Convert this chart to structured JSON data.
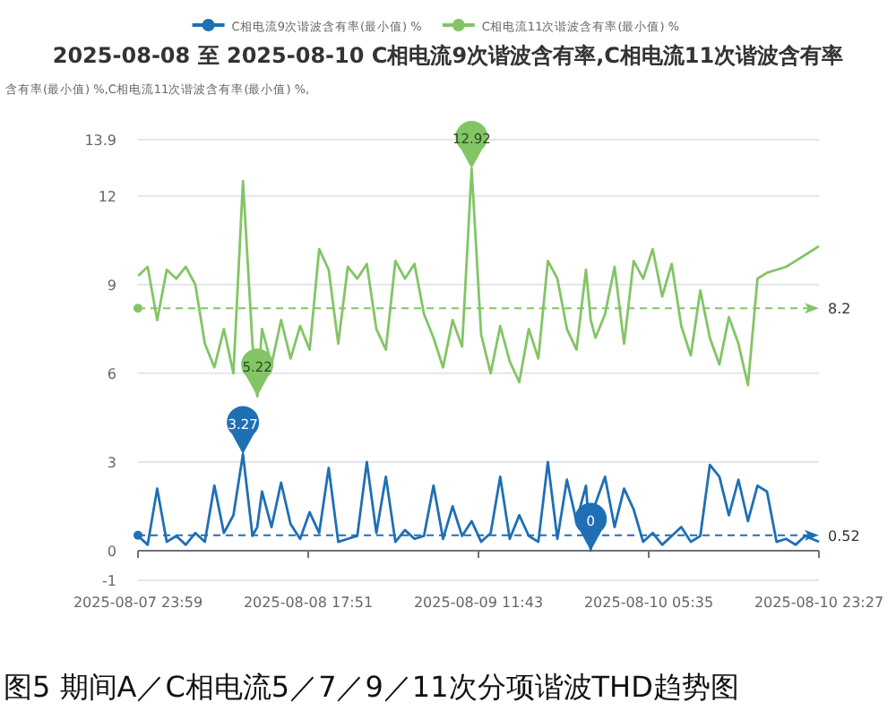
{
  "chart_data": {
    "type": "line",
    "title": "2025-08-08  至 2025-08-10 C相电流9次谐波含有率,C相电流11次谐波含有率",
    "ylabel": "含有率(最小值) %,C相电流11次谐波含有率(最小值) %,",
    "legend": "top",
    "grid": "y",
    "marker": "none",
    "xlim": [
      "2025-08-07T23:59",
      "2025-08-10T23:27"
    ],
    "xticks": [
      {
        "value": "2025-08-07T23:59",
        "label": "2025-08-07 23:59"
      },
      {
        "value": "2025-08-08T17:51",
        "label": "2025-08-08 17:51"
      },
      {
        "value": "2025-08-09T11:43",
        "label": "2025-08-09 11:43"
      },
      {
        "value": "2025-08-10T05:35",
        "label": "2025-08-10 05:35"
      },
      {
        "value": "2025-08-10T23:27",
        "label": "2025-08-10 23:27"
      }
    ],
    "ylim": [
      -1,
      13.9
    ],
    "yticks": [
      -1,
      0,
      3,
      6,
      9,
      12,
      13.9
    ],
    "x": [
      "2025-08-08T00:00",
      "2025-08-08T01:00",
      "2025-08-08T02:00",
      "2025-08-08T03:00",
      "2025-08-08T04:00",
      "2025-08-08T05:00",
      "2025-08-08T06:00",
      "2025-08-08T07:00",
      "2025-08-08T08:00",
      "2025-08-08T09:00",
      "2025-08-08T10:00",
      "2025-08-08T11:00",
      "2025-08-08T12:00",
      "2025-08-08T12:30",
      "2025-08-08T13:00",
      "2025-08-08T14:00",
      "2025-08-08T15:00",
      "2025-08-08T16:00",
      "2025-08-08T17:00",
      "2025-08-08T18:00",
      "2025-08-08T19:00",
      "2025-08-08T20:00",
      "2025-08-08T21:00",
      "2025-08-08T22:00",
      "2025-08-08T23:00",
      "2025-08-09T00:00",
      "2025-08-09T01:00",
      "2025-08-09T02:00",
      "2025-08-09T03:00",
      "2025-08-09T04:00",
      "2025-08-09T05:00",
      "2025-08-09T06:00",
      "2025-08-09T07:00",
      "2025-08-09T08:00",
      "2025-08-09T09:00",
      "2025-08-09T10:00",
      "2025-08-09T11:00",
      "2025-08-09T12:00",
      "2025-08-09T13:00",
      "2025-08-09T14:00",
      "2025-08-09T15:00",
      "2025-08-09T16:00",
      "2025-08-09T17:00",
      "2025-08-09T18:00",
      "2025-08-09T19:00",
      "2025-08-09T20:00",
      "2025-08-09T21:00",
      "2025-08-09T22:00",
      "2025-08-09T23:00",
      "2025-08-09T23:30",
      "2025-08-10T00:00",
      "2025-08-10T01:00",
      "2025-08-10T02:00",
      "2025-08-10T03:00",
      "2025-08-10T04:00",
      "2025-08-10T05:00",
      "2025-08-10T06:00",
      "2025-08-10T07:00",
      "2025-08-10T08:00",
      "2025-08-10T09:00",
      "2025-08-10T10:00",
      "2025-08-10T11:00",
      "2025-08-10T12:00",
      "2025-08-10T13:00",
      "2025-08-10T14:00",
      "2025-08-10T15:00",
      "2025-08-10T16:00",
      "2025-08-10T17:00",
      "2025-08-10T18:00",
      "2025-08-10T19:00",
      "2025-08-10T20:00",
      "2025-08-10T21:00",
      "2025-08-10T22:00",
      "2025-08-10T23:27"
    ],
    "series": [
      {
        "name": "C相电流9次谐波含有率(最小值) %",
        "color": "#1f6fb5",
        "values": [
          0.5,
          0.2,
          2.1,
          0.3,
          0.5,
          0.2,
          0.6,
          0.3,
          2.2,
          0.6,
          1.2,
          3.27,
          0.5,
          0.8,
          2.0,
          0.8,
          2.3,
          0.9,
          0.4,
          1.3,
          0.6,
          2.8,
          0.3,
          0.4,
          0.5,
          3.0,
          0.6,
          2.5,
          0.3,
          0.7,
          0.4,
          0.5,
          2.2,
          0.4,
          1.5,
          0.5,
          1.0,
          0.3,
          0.6,
          2.5,
          0.4,
          1.2,
          0.5,
          0.3,
          3.0,
          0.4,
          2.4,
          1.0,
          2.2,
          0,
          1.6,
          2.5,
          0.8,
          2.1,
          1.4,
          0.3,
          0.6,
          0.2,
          0.5,
          0.8,
          0.3,
          0.5,
          2.9,
          2.5,
          1.2,
          2.4,
          1.0,
          2.2,
          2.0,
          0.3,
          0.4,
          0.2,
          0.5,
          0.3
        ]
      },
      {
        "name": "C相电流11次谐波含有率(最小值) %",
        "color": "#82c566",
        "values": [
          9.3,
          9.6,
          7.8,
          9.5,
          9.2,
          9.6,
          9.0,
          7.0,
          6.2,
          7.5,
          6.0,
          12.5,
          7.0,
          5.22,
          7.5,
          6.3,
          7.8,
          6.5,
          7.6,
          6.8,
          10.2,
          9.5,
          7.0,
          9.6,
          9.2,
          9.7,
          7.5,
          6.8,
          9.8,
          9.2,
          9.7,
          8.0,
          7.2,
          6.2,
          7.8,
          6.9,
          12.92,
          7.3,
          6.0,
          7.6,
          6.4,
          5.7,
          7.5,
          6.5,
          9.8,
          9.2,
          7.5,
          6.8,
          9.5,
          7.8,
          7.2,
          8.0,
          9.6,
          7.0,
          9.8,
          9.2,
          10.2,
          8.6,
          9.7,
          7.6,
          6.6,
          8.8,
          7.2,
          6.3,
          7.9,
          7.0,
          5.6,
          9.2,
          9.4,
          9.5,
          9.6,
          9.8,
          10.0,
          10.3
        ]
      }
    ],
    "ref_lines": [
      {
        "axis": "y",
        "value": 8.2,
        "label": "8.2",
        "color": "#82c566",
        "line_style": "dashed"
      },
      {
        "axis": "y",
        "value": 0.52,
        "label": "0.52",
        "color": "#1f6fb5",
        "line_style": "dashed"
      }
    ],
    "annotations": [
      {
        "text": "12.92",
        "x": "2025-08-09T11:00",
        "y": 12.92
      },
      {
        "text": "5.22",
        "x": "2025-08-08T12:30",
        "y": 5.22
      },
      {
        "text": "3.27",
        "x": "2025-08-08T11:00",
        "y": 3.27
      },
      {
        "text": "0",
        "x": "2025-08-09T23:30",
        "y": 0
      },
      "图5 期间A／C相电流5／7／9／11次分项谐波THD趋势图"
    ]
  }
}
